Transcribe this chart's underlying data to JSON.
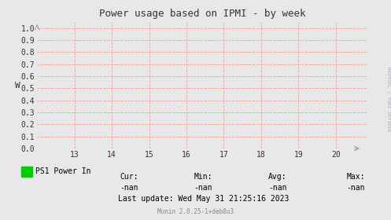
{
  "title": "Power usage based on IPMI - by week",
  "ylabel": "W",
  "xlim": [
    12.0,
    20.85
  ],
  "ylim": [
    0.0,
    1.05
  ],
  "xticks": [
    13,
    14,
    15,
    16,
    17,
    18,
    19,
    20
  ],
  "yticks": [
    0.0,
    0.1,
    0.2,
    0.3,
    0.4,
    0.5,
    0.6,
    0.7,
    0.8,
    0.9,
    1.0
  ],
  "bg_color": "#e8e8e8",
  "plot_bg_color": "#e8e8e8",
  "grid_color": "#ff9999",
  "title_color": "#333333",
  "axis_color": "#333333",
  "tick_color": "#333333",
  "legend_label": "PS1 Power In",
  "legend_color": "#00cc00",
  "cur_label": "Cur:",
  "cur_value": "-nan",
  "min_label": "Min:",
  "min_value": "-nan",
  "avg_label": "Avg:",
  "avg_value": "-nan",
  "max_label": "Max:",
  "max_value": "-nan",
  "last_update": "Last update: Wed May 31 21:25:16 2023",
  "footer": "Munin 2.0.25-1+deb8u3",
  "rrdtool_text": "RRDTOOL / TOBI OETIKER",
  "font_family": "DejaVu Sans Mono"
}
